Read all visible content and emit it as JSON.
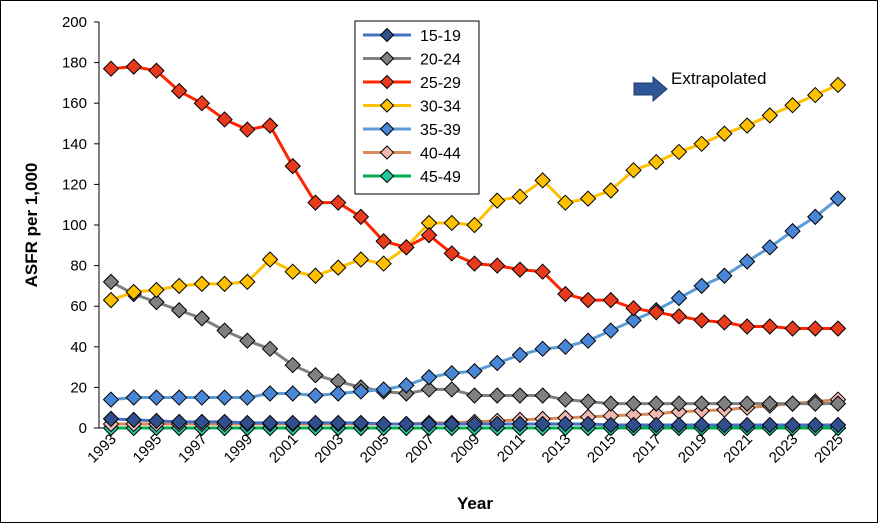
{
  "chart_data": {
    "type": "line",
    "xlabel": "Year",
    "ylabel": "ASFR per 1,000",
    "ylim": [
      0,
      200
    ],
    "xlim": [
      1993,
      2025
    ],
    "y_ticks": [
      0,
      20,
      40,
      60,
      80,
      100,
      120,
      140,
      160,
      180,
      200
    ],
    "x_ticks": [
      1993,
      1995,
      1997,
      1999,
      2001,
      2003,
      2005,
      2007,
      2009,
      2011,
      2013,
      2015,
      2017,
      2019,
      2021,
      2023,
      2025
    ],
    "grid": false,
    "legend_position": "top-center",
    "annotation": {
      "text": "Extrapolated",
      "arrow_color": "#2E5597"
    },
    "x": [
      1993,
      1994,
      1995,
      1996,
      1997,
      1998,
      1999,
      2000,
      2001,
      2002,
      2003,
      2004,
      2005,
      2006,
      2007,
      2008,
      2009,
      2010,
      2011,
      2012,
      2013,
      2014,
      2015,
      2016,
      2017,
      2018,
      2019,
      2020,
      2021,
      2022,
      2023,
      2024,
      2025
    ],
    "series": [
      {
        "name": "15-19",
        "line_color": "#4472C4",
        "marker_color": "#2F4F8F",
        "values": [
          4.5,
          4,
          3.5,
          3,
          3,
          3,
          2.5,
          2.5,
          2.5,
          2.5,
          2.5,
          2.5,
          2,
          2,
          2,
          2,
          2,
          2,
          2,
          2,
          2,
          2,
          1.5,
          1.5,
          1.5,
          1.5,
          1.5,
          1.5,
          1.5,
          1.5,
          1.5,
          1.5,
          1.5
        ]
      },
      {
        "name": "20-24",
        "line_color": "#7F7F7F",
        "marker_color": "#808080",
        "values": [
          72,
          66,
          62,
          58,
          54,
          48,
          43,
          39,
          31,
          26,
          23,
          20,
          18,
          17,
          19,
          19,
          16,
          16,
          16,
          16,
          14,
          13,
          12,
          12,
          12,
          12,
          12,
          12,
          12,
          12,
          12,
          12,
          12
        ]
      },
      {
        "name": "25-29",
        "line_color": "#FF2400",
        "marker_color": "#E83A1C",
        "values": [
          177,
          178,
          176,
          166,
          160,
          152,
          147,
          149,
          129,
          111,
          111,
          104,
          92,
          89,
          95,
          86,
          81,
          80,
          78,
          77,
          66,
          63,
          63,
          59,
          57,
          55,
          53,
          52,
          50,
          50,
          49,
          49,
          49
        ]
      },
      {
        "name": "30-34",
        "line_color": "#FFC000",
        "marker_color": "#FFC000",
        "values": [
          63,
          67,
          68,
          70,
          71,
          71,
          72,
          83,
          77,
          75,
          79,
          83,
          81,
          89,
          101,
          101,
          100,
          112,
          114,
          122,
          111,
          113,
          117,
          127,
          131,
          136,
          140,
          145,
          149,
          154,
          159,
          164,
          169
        ]
      },
      {
        "name": "35-39",
        "line_color": "#5B9BD5",
        "marker_color": "#4A86D6",
        "values": [
          14,
          15,
          15,
          15,
          15,
          15,
          15,
          17,
          17,
          16,
          17,
          18,
          19,
          21,
          25,
          27,
          28,
          32,
          36,
          39,
          40,
          43,
          48,
          53,
          58,
          64,
          70,
          75,
          82,
          89,
          97,
          104,
          113
        ]
      },
      {
        "name": "40-44",
        "line_color": "#D9895A",
        "marker_color": "#F2B8B0",
        "values": [
          2,
          2,
          2,
          2,
          2,
          2,
          2,
          2,
          2,
          2,
          2,
          2,
          2,
          2,
          2.5,
          2.5,
          3,
          3.5,
          4,
          4.5,
          5,
          5.5,
          6,
          6.5,
          7,
          8,
          8.5,
          9,
          10,
          11,
          12,
          13,
          14
        ]
      },
      {
        "name": "45-49",
        "line_color": "#00B050",
        "marker_color": "#1EC8A0",
        "values": [
          0,
          0,
          0,
          0,
          0,
          0,
          0,
          0,
          0,
          0,
          0,
          0,
          0,
          0,
          0,
          0,
          0,
          0,
          0,
          0,
          0,
          0,
          0,
          0,
          0,
          0,
          0,
          0,
          0,
          0,
          0,
          0,
          0
        ]
      }
    ]
  }
}
